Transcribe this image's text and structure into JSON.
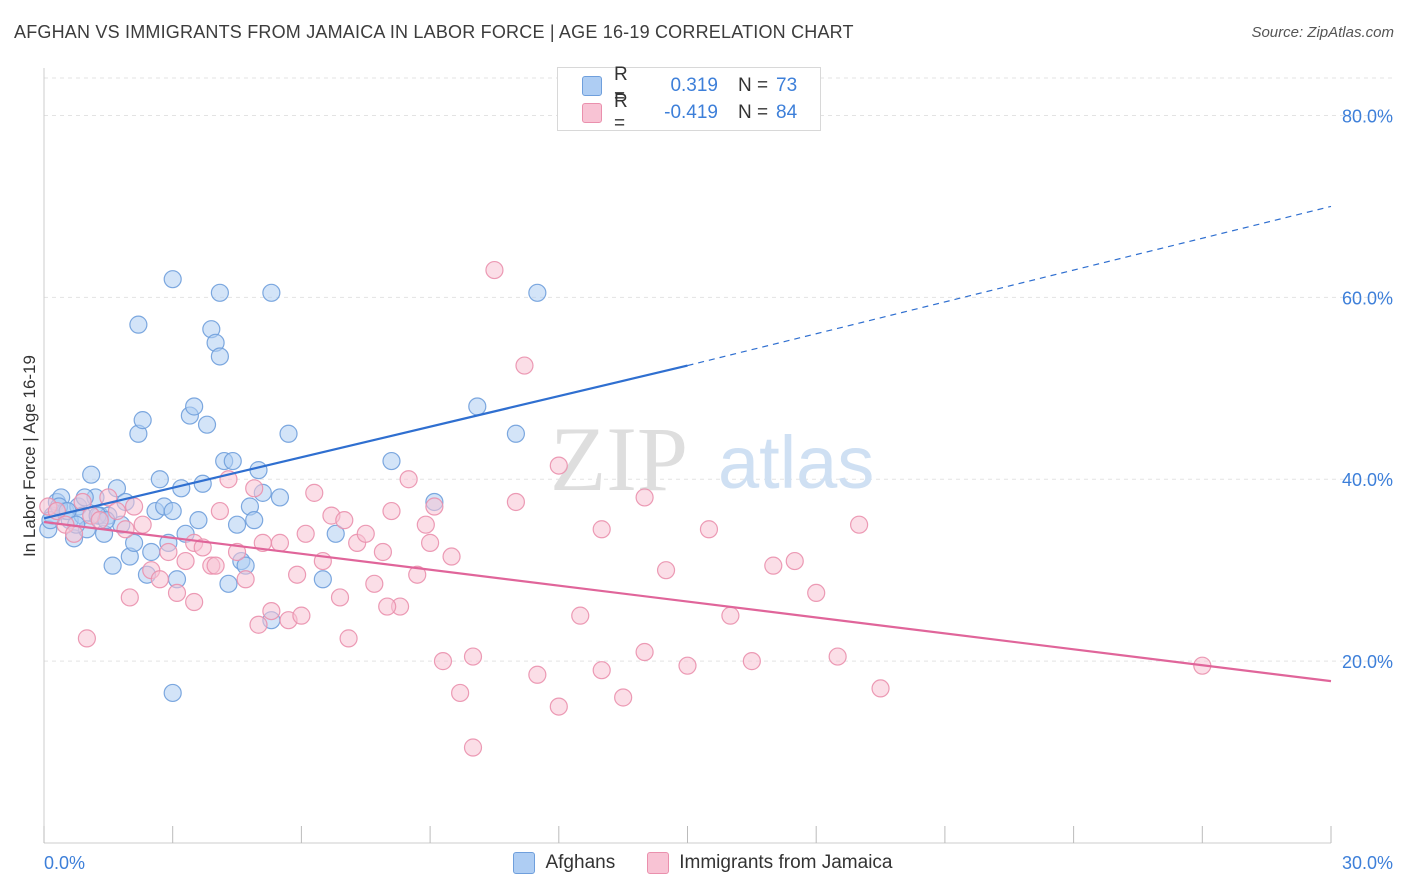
{
  "title": "AFGHAN VS IMMIGRANTS FROM JAMAICA IN LABOR FORCE | AGE 16-19 CORRELATION CHART",
  "source": "Source: ZipAtlas.com",
  "watermark": {
    "zip": "ZIP",
    "atlas": "atlas"
  },
  "legend": {
    "rows": [
      {
        "r_label": "R =",
        "r_value": "0.319",
        "n_label": "N =",
        "n_value": "73"
      },
      {
        "r_label": "R =",
        "r_value": "-0.419",
        "n_label": "N =",
        "n_value": "84"
      }
    ]
  },
  "colors": {
    "afghans_fill": "#aecdf3",
    "afghans_stroke": "#6f9fdc",
    "afghans_line": "#2f6fd0",
    "jamaica_fill": "#f8c3d4",
    "jamaica_stroke": "#ea90ad",
    "jamaica_line": "#e0659a",
    "tick_label": "#3d7fd9",
    "grid": "#e3e3e3"
  },
  "chart_data": {
    "type": "scatter",
    "title": "AFGHAN VS IMMIGRANTS FROM JAMAICA IN LABOR FORCE | AGE 16-19 CORRELATION CHART",
    "xlabel": "",
    "ylabel": "In Labor Force | Age 16-19",
    "xlim": [
      0,
      30
    ],
    "ylim": [
      0,
      85
    ],
    "x_tick_labels": [
      "0.0%",
      "30.0%"
    ],
    "y_ticks": [
      20,
      40,
      60,
      80
    ],
    "y_tick_labels": [
      "20.0%",
      "40.0%",
      "60.0%",
      "80.0%"
    ],
    "grid": true,
    "legend_position": "top-center",
    "series": [
      {
        "name": "Afghans",
        "r": 0.319,
        "n": 73,
        "trend": {
          "x0": 0,
          "y0": 35.7,
          "x1": 15,
          "y1": 52.5,
          "dashed_to_x": 30,
          "dashed_to_y": 70.0
        },
        "points": [
          [
            0.1,
            34.5
          ],
          [
            0.2,
            36.0
          ],
          [
            0.3,
            37.5
          ],
          [
            0.4,
            38.0
          ],
          [
            0.5,
            36.5
          ],
          [
            0.6,
            35.5
          ],
          [
            0.7,
            33.5
          ],
          [
            0.8,
            37.0
          ],
          [
            0.9,
            36.0
          ],
          [
            1.0,
            34.5
          ],
          [
            1.1,
            40.5
          ],
          [
            1.2,
            38.0
          ],
          [
            1.3,
            36.0
          ],
          [
            1.4,
            34.0
          ],
          [
            1.5,
            36.0
          ],
          [
            1.6,
            30.5
          ],
          [
            1.7,
            39.0
          ],
          [
            1.8,
            35.0
          ],
          [
            1.9,
            37.5
          ],
          [
            2.0,
            31.5
          ],
          [
            2.1,
            33.0
          ],
          [
            2.2,
            45.0
          ],
          [
            2.3,
            46.5
          ],
          [
            2.4,
            29.5
          ],
          [
            2.5,
            32.0
          ],
          [
            2.6,
            36.5
          ],
          [
            2.7,
            40.0
          ],
          [
            2.8,
            37.0
          ],
          [
            2.9,
            33.0
          ],
          [
            3.0,
            36.5
          ],
          [
            3.1,
            29.0
          ],
          [
            3.2,
            39.0
          ],
          [
            3.3,
            34.0
          ],
          [
            3.4,
            47.0
          ],
          [
            3.5,
            48.0
          ],
          [
            3.6,
            35.5
          ],
          [
            3.7,
            39.5
          ],
          [
            3.8,
            46.0
          ],
          [
            3.9,
            56.5
          ],
          [
            4.0,
            55.0
          ],
          [
            4.1,
            53.5
          ],
          [
            4.2,
            42.0
          ],
          [
            4.3,
            28.5
          ],
          [
            4.4,
            42.0
          ],
          [
            4.5,
            35.0
          ],
          [
            4.6,
            31.0
          ],
          [
            4.7,
            30.5
          ],
          [
            4.8,
            37.0
          ],
          [
            4.9,
            35.5
          ],
          [
            5.0,
            41.0
          ],
          [
            5.1,
            38.5
          ],
          [
            5.3,
            24.5
          ],
          [
            5.5,
            38.0
          ],
          [
            3.0,
            62.0
          ],
          [
            4.1,
            60.5
          ],
          [
            2.2,
            57.0
          ],
          [
            5.3,
            60.5
          ],
          [
            5.7,
            45.0
          ],
          [
            3.0,
            16.5
          ],
          [
            6.5,
            29.0
          ],
          [
            6.8,
            34.0
          ],
          [
            8.1,
            42.0
          ],
          [
            9.1,
            37.5
          ],
          [
            10.1,
            48.0
          ],
          [
            11.0,
            45.0
          ],
          [
            11.5,
            60.5
          ],
          [
            0.15,
            35.5
          ],
          [
            0.35,
            37.0
          ],
          [
            0.55,
            36.5
          ],
          [
            0.75,
            35.0
          ],
          [
            0.95,
            38.0
          ],
          [
            1.25,
            36.0
          ],
          [
            1.45,
            35.5
          ]
        ]
      },
      {
        "name": "Immigrants from Jamaica",
        "r": -0.419,
        "n": 84,
        "trend": {
          "x0": 0,
          "y0": 35.3,
          "x1": 30,
          "y1": 17.8
        },
        "points": [
          [
            0.1,
            37.0
          ],
          [
            0.3,
            36.5
          ],
          [
            0.5,
            35.0
          ],
          [
            0.7,
            34.0
          ],
          [
            0.9,
            37.5
          ],
          [
            1.1,
            36.0
          ],
          [
            1.3,
            35.5
          ],
          [
            1.5,
            38.0
          ],
          [
            1.7,
            36.5
          ],
          [
            1.9,
            34.5
          ],
          [
            2.1,
            37.0
          ],
          [
            2.3,
            35.0
          ],
          [
            2.5,
            30.0
          ],
          [
            2.7,
            29.0
          ],
          [
            2.9,
            32.0
          ],
          [
            3.1,
            27.5
          ],
          [
            3.3,
            31.0
          ],
          [
            3.5,
            33.0
          ],
          [
            3.7,
            32.5
          ],
          [
            3.9,
            30.5
          ],
          [
            4.1,
            36.5
          ],
          [
            4.3,
            40.0
          ],
          [
            4.5,
            32.0
          ],
          [
            4.7,
            29.0
          ],
          [
            4.9,
            39.0
          ],
          [
            5.1,
            33.0
          ],
          [
            5.3,
            25.5
          ],
          [
            5.5,
            33.0
          ],
          [
            5.7,
            24.5
          ],
          [
            5.9,
            29.5
          ],
          [
            6.1,
            34.0
          ],
          [
            6.3,
            38.5
          ],
          [
            6.5,
            31.0
          ],
          [
            6.7,
            36.0
          ],
          [
            6.9,
            27.0
          ],
          [
            7.1,
            22.5
          ],
          [
            7.3,
            33.0
          ],
          [
            7.5,
            34.0
          ],
          [
            7.7,
            28.5
          ],
          [
            7.9,
            32.0
          ],
          [
            8.1,
            36.5
          ],
          [
            8.3,
            26.0
          ],
          [
            8.5,
            40.0
          ],
          [
            8.7,
            29.5
          ],
          [
            8.9,
            35.0
          ],
          [
            9.1,
            37.0
          ],
          [
            9.3,
            20.0
          ],
          [
            9.5,
            31.5
          ],
          [
            9.7,
            16.5
          ],
          [
            10.0,
            10.5
          ],
          [
            10.5,
            63.0
          ],
          [
            11.2,
            52.5
          ],
          [
            11.5,
            18.5
          ],
          [
            12.0,
            15.0
          ],
          [
            12.5,
            25.0
          ],
          [
            13.0,
            19.0
          ],
          [
            13.5,
            16.0
          ],
          [
            14.0,
            21.0
          ],
          [
            14.5,
            30.0
          ],
          [
            15.0,
            19.5
          ],
          [
            15.5,
            34.5
          ],
          [
            16.0,
            25.0
          ],
          [
            16.5,
            20.0
          ],
          [
            17.0,
            30.5
          ],
          [
            17.5,
            31.0
          ],
          [
            18.0,
            27.5
          ],
          [
            18.5,
            20.5
          ],
          [
            19.0,
            35.0
          ],
          [
            19.5,
            17.0
          ],
          [
            27.0,
            19.5
          ],
          [
            1.0,
            22.5
          ],
          [
            2.0,
            27.0
          ],
          [
            3.5,
            26.5
          ],
          [
            4.0,
            30.5
          ],
          [
            5.0,
            24.0
          ],
          [
            6.0,
            25.0
          ],
          [
            7.0,
            35.5
          ],
          [
            8.0,
            26.0
          ],
          [
            9.0,
            33.0
          ],
          [
            10.0,
            20.5
          ],
          [
            11.0,
            37.5
          ],
          [
            12.0,
            41.5
          ],
          [
            13.0,
            34.5
          ],
          [
            14.0,
            38.0
          ]
        ]
      }
    ]
  }
}
